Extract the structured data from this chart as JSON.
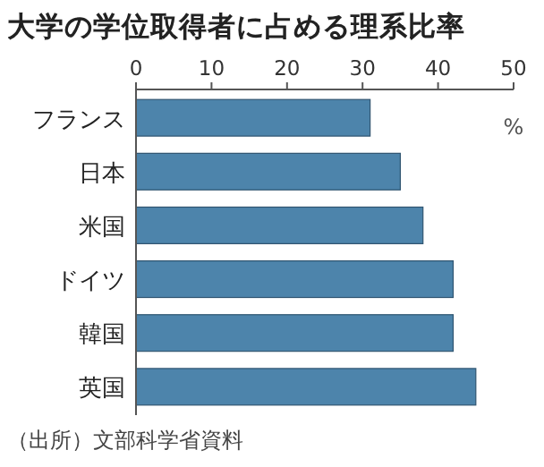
{
  "chart_data": {
    "type": "bar",
    "orientation": "horizontal",
    "title": "大学の学位取得者に占める理系比率",
    "categories": [
      "フランス",
      "日本",
      "米国",
      "ドイツ",
      "韓国",
      "英国"
    ],
    "values": [
      31,
      35,
      38,
      42,
      42,
      45
    ],
    "color": "#4d84ab",
    "xlabel": "%",
    "xlim": [
      0,
      50
    ],
    "xticks": [
      0,
      10,
      20,
      30,
      40,
      50
    ],
    "annotations": [
      "（出所）文部科学省資料"
    ]
  }
}
